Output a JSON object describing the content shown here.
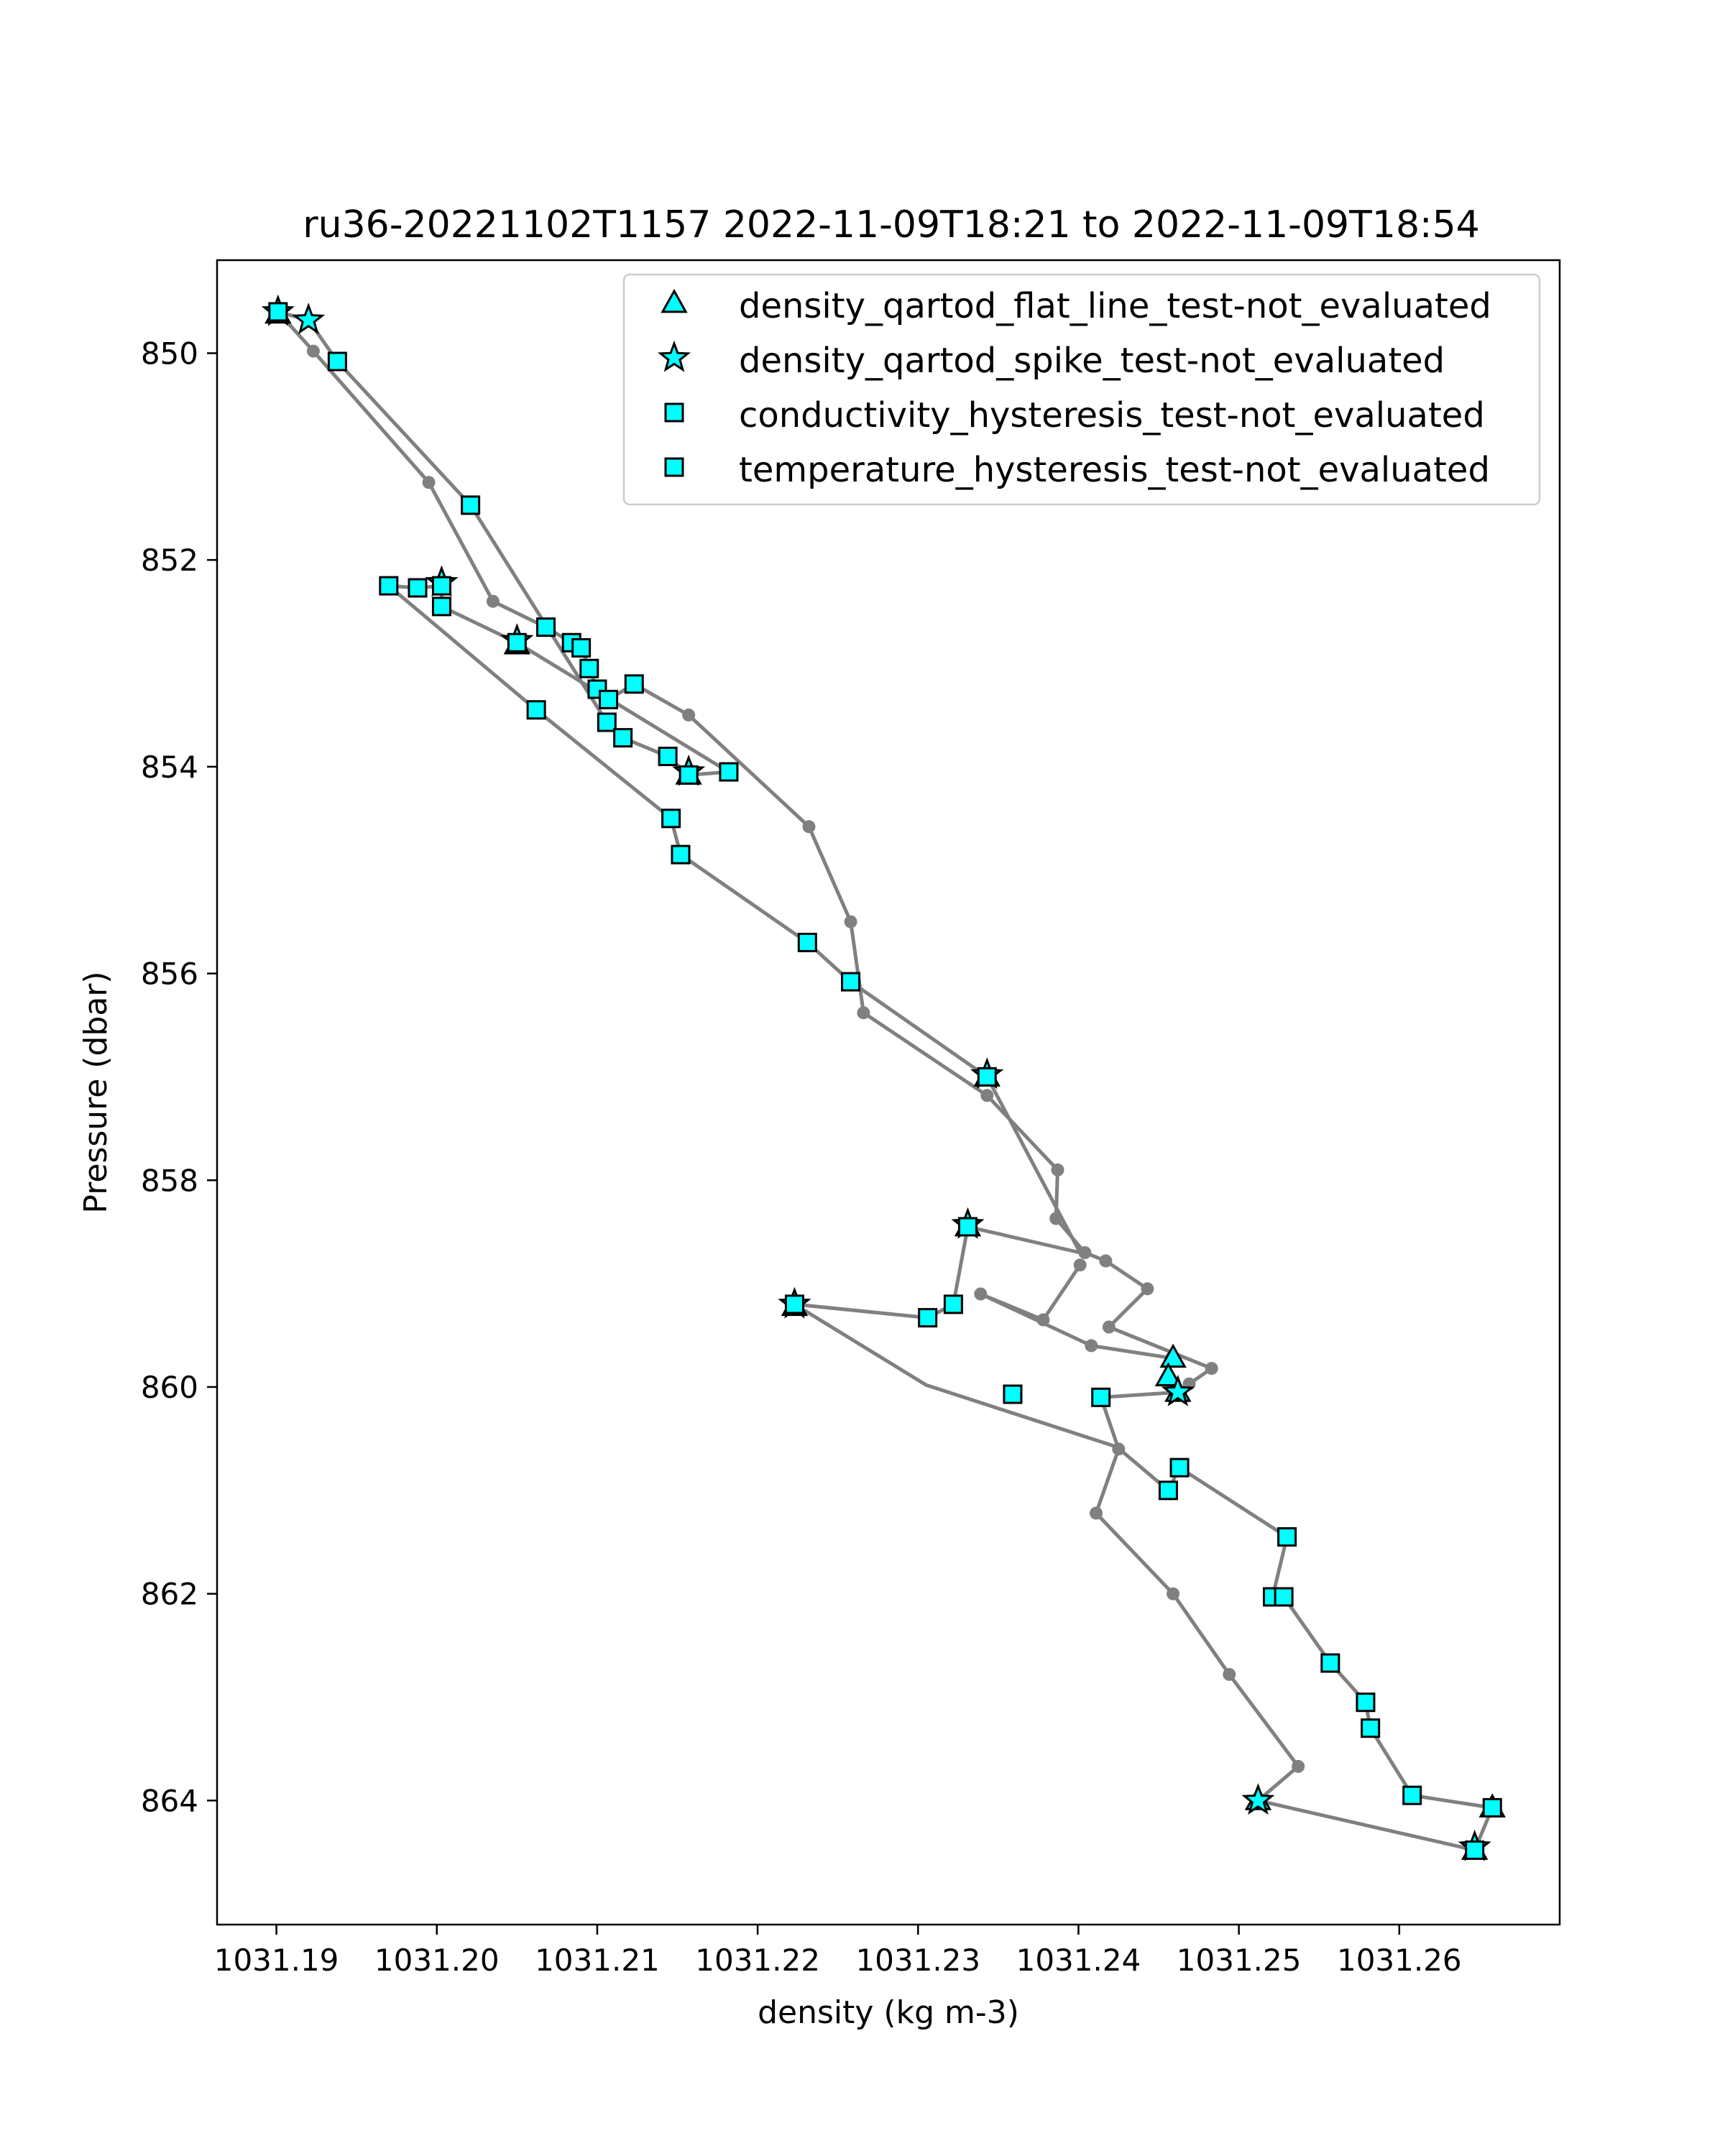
{
  "chart_data": {
    "type": "scatter",
    "title": "ru36-20221102T1157 2022-11-09T18:21 to 2022-11-09T18:54",
    "xlabel": "density (kg m-3)",
    "ylabel": "Pressure (dbar)",
    "xlim": [
      1031.1863,
      1031.27
    ],
    "ylim": [
      865.2,
      849.1
    ],
    "y_inverted": true,
    "xticks": [
      1031.19,
      1031.2,
      1031.21,
      1031.22,
      1031.23,
      1031.24,
      1031.25,
      1031.26
    ],
    "xtick_labels": [
      "1031.19",
      "1031.20",
      "1031.21",
      "1031.22",
      "1031.23",
      "1031.24",
      "1031.25",
      "1031.26"
    ],
    "yticks": [
      850,
      852,
      854,
      856,
      858,
      860,
      862,
      864
    ],
    "ytick_labels": [
      "850",
      "852",
      "854",
      "856",
      "858",
      "860",
      "862",
      "864"
    ],
    "legend_position": "upper-right",
    "colors": {
      "line": "#808080",
      "marker_fill": "#00ffff",
      "marker_edge": "#000000"
    },
    "profile_points": [
      [
        1031.1901,
        849.6
      ],
      [
        1031.1923,
        849.98
      ],
      [
        1031.1995,
        851.25
      ],
      [
        1031.2035,
        852.4
      ],
      [
        1031.2068,
        852.65
      ],
      [
        1031.2084,
        852.8
      ],
      [
        1031.209,
        852.85
      ],
      [
        1031.2095,
        853.05
      ],
      [
        1031.21,
        853.25
      ],
      [
        1031.2107,
        853.35
      ],
      [
        1031.2123,
        853.2
      ],
      [
        1031.2157,
        853.5
      ],
      [
        1031.2232,
        854.58
      ],
      [
        1031.2258,
        855.5
      ],
      [
        1031.2266,
        856.38
      ],
      [
        1031.2343,
        857.18
      ],
      [
        1031.2387,
        857.9
      ],
      [
        1031.2386,
        858.37
      ],
      [
        1031.2404,
        858.7
      ],
      [
        1031.2417,
        858.78
      ],
      [
        1031.2443,
        859.05
      ],
      [
        1031.2419,
        859.42
      ],
      [
        1031.2483,
        859.82
      ],
      [
        1031.2469,
        859.97
      ],
      [
        1031.2462,
        860.05
      ]
    ],
    "profile_points_2": [
      [
        1031.2401,
        858.82
      ],
      [
        1031.2378,
        859.35
      ],
      [
        1031.2339,
        859.1
      ],
      [
        1031.2408,
        859.6
      ],
      [
        1031.2458,
        859.72
      ]
    ],
    "profile_points_3": [
      [
        1031.2462,
        860.05
      ],
      [
        1031.2414,
        860.1
      ],
      [
        1031.2425,
        860.6
      ],
      [
        1031.2411,
        861.22
      ],
      [
        1031.2459,
        862.0
      ],
      [
        1031.2494,
        862.78
      ],
      [
        1031.2537,
        863.67
      ],
      [
        1031.2512,
        864.0
      ]
    ],
    "return_points": [
      [
        1031.2512,
        864.0
      ],
      [
        1031.2647,
        864.48
      ],
      [
        1031.2658,
        864.07
      ],
      [
        1031.2608,
        863.95
      ],
      [
        1031.2582,
        863.3
      ],
      [
        1031.2579,
        863.05
      ],
      [
        1031.2557,
        862.67
      ],
      [
        1031.2528,
        862.03
      ],
      [
        1031.2521,
        862.03
      ],
      [
        1031.253,
        861.45
      ],
      [
        1031.2463,
        860.78
      ],
      [
        1031.2456,
        861.0
      ],
      [
        1031.2424,
        860.58
      ],
      [
        1031.2305,
        859.98
      ],
      [
        1031.2223,
        859.2
      ],
      [
        1031.2306,
        859.33
      ],
      [
        1031.2322,
        859.2
      ],
      [
        1031.2331,
        858.45
      ],
      [
        1031.2401,
        858.7
      ],
      [
        1031.2343,
        857.0
      ],
      [
        1031.2258,
        856.08
      ],
      [
        1031.2231,
        855.7
      ],
      [
        1031.2152,
        854.85
      ],
      [
        1031.2146,
        854.5
      ],
      [
        1031.2062,
        853.45
      ],
      [
        1031.197,
        852.25
      ],
      [
        1031.1988,
        852.27
      ],
      [
        1031.2003,
        852.25
      ],
      [
        1031.2003,
        852.45
      ],
      [
        1031.205,
        852.8
      ],
      [
        1031.2182,
        854.05
      ],
      [
        1031.2157,
        854.08
      ],
      [
        1031.2144,
        853.9
      ],
      [
        1031.2116,
        853.72
      ],
      [
        1031.2106,
        853.57
      ],
      [
        1031.2021,
        851.47
      ],
      [
        1031.1938,
        850.08
      ],
      [
        1031.192,
        849.68
      ],
      [
        1031.1901,
        849.6
      ]
    ],
    "series": [
      {
        "name": "density_qartod_flat_line_test-not_evaluated",
        "marker": "triangle",
        "points": [
          [
            1031.1901,
            849.62
          ],
          [
            1031.205,
            852.82
          ],
          [
            1031.2157,
            854.08
          ],
          [
            1031.2343,
            857.0
          ],
          [
            1031.2331,
            858.45
          ],
          [
            1031.2223,
            859.22
          ],
          [
            1031.2459,
            859.72
          ],
          [
            1031.2456,
            859.9
          ],
          [
            1031.2462,
            860.05
          ],
          [
            1031.2512,
            864.0
          ],
          [
            1031.2647,
            864.48
          ],
          [
            1031.2658,
            864.07
          ]
        ]
      },
      {
        "name": "density_qartod_spike_test-not_evaluated",
        "marker": "star",
        "points": [
          [
            1031.1901,
            849.6
          ],
          [
            1031.192,
            849.68
          ],
          [
            1031.2003,
            852.22
          ],
          [
            1031.205,
            852.78
          ],
          [
            1031.2157,
            854.05
          ],
          [
            1031.2343,
            856.98
          ],
          [
            1031.2331,
            858.43
          ],
          [
            1031.2223,
            859.2
          ],
          [
            1031.2462,
            860.05
          ],
          [
            1031.2512,
            864.0
          ],
          [
            1031.2647,
            864.45
          ]
        ]
      },
      {
        "name": "conductivity_hysteresis_test-not_evaluated",
        "marker": "square",
        "points": []
      },
      {
        "name": "temperature_hysteresis_test-not_evaluated",
        "marker": "square",
        "points": [
          [
            1031.1901,
            849.6
          ],
          [
            1031.1938,
            850.08
          ],
          [
            1031.2021,
            851.47
          ],
          [
            1031.197,
            852.25
          ],
          [
            1031.1988,
            852.27
          ],
          [
            1031.2003,
            852.25
          ],
          [
            1031.2003,
            852.45
          ],
          [
            1031.205,
            852.8
          ],
          [
            1031.2068,
            852.65
          ],
          [
            1031.2084,
            852.8
          ],
          [
            1031.209,
            852.85
          ],
          [
            1031.2095,
            853.05
          ],
          [
            1031.21,
            853.25
          ],
          [
            1031.2107,
            853.35
          ],
          [
            1031.2123,
            853.2
          ],
          [
            1031.2106,
            853.57
          ],
          [
            1031.2116,
            853.72
          ],
          [
            1031.2062,
            853.45
          ],
          [
            1031.2144,
            853.9
          ],
          [
            1031.2157,
            854.08
          ],
          [
            1031.2182,
            854.05
          ],
          [
            1031.2146,
            854.5
          ],
          [
            1031.2152,
            854.85
          ],
          [
            1031.2231,
            855.7
          ],
          [
            1031.2258,
            856.08
          ],
          [
            1031.2343,
            857.0
          ],
          [
            1031.2331,
            858.45
          ],
          [
            1031.2223,
            859.2
          ],
          [
            1031.2322,
            859.2
          ],
          [
            1031.2306,
            859.33
          ],
          [
            1031.2359,
            860.07
          ],
          [
            1031.2414,
            860.1
          ],
          [
            1031.2463,
            860.78
          ],
          [
            1031.2456,
            861.0
          ],
          [
            1031.253,
            861.45
          ],
          [
            1031.2521,
            862.03
          ],
          [
            1031.2528,
            862.03
          ],
          [
            1031.2557,
            862.67
          ],
          [
            1031.2579,
            863.05
          ],
          [
            1031.2582,
            863.3
          ],
          [
            1031.2608,
            863.95
          ],
          [
            1031.2658,
            864.07
          ],
          [
            1031.2647,
            864.48
          ]
        ]
      }
    ]
  }
}
